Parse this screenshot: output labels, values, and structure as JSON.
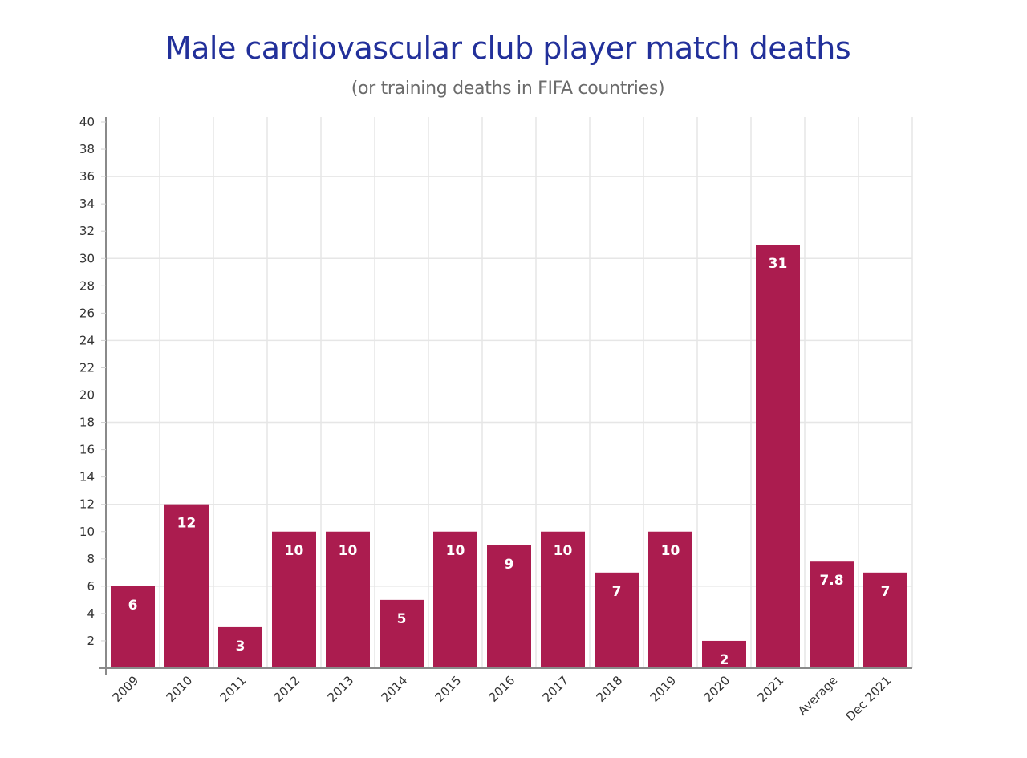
{
  "chart_data": {
    "type": "bar",
    "title": "Male cardiovascular club player match deaths",
    "subtitle": "(or training deaths in FIFA countries)",
    "xlabel": "",
    "ylabel": "",
    "categories": [
      "2009",
      "2010",
      "2011",
      "2012",
      "2013",
      "2014",
      "2015",
      "2016",
      "2017",
      "2018",
      "2019",
      "2020",
      "2021",
      "Average",
      "Dec 2021"
    ],
    "values": [
      6,
      12,
      3,
      10,
      10,
      5,
      10,
      9,
      10,
      7,
      10,
      2,
      31,
      7.8,
      7
    ],
    "data_labels": [
      "6",
      "12",
      "3",
      "10",
      "10",
      "5",
      "10",
      "9",
      "10",
      "7",
      "10",
      "2",
      "31",
      "7.8",
      "7"
    ],
    "ylim": [
      0,
      40
    ],
    "yticks": [
      2,
      4,
      6,
      8,
      10,
      12,
      14,
      16,
      18,
      20,
      22,
      24,
      26,
      28,
      30,
      32,
      34,
      36,
      38,
      40
    ],
    "grid_y_values": [
      6,
      12,
      18,
      24,
      30,
      36
    ],
    "grid": true,
    "legend": "none",
    "bar_color": "#ab1c4f",
    "title_color": "#22309a",
    "subtitle_color": "#6b6b6b"
  }
}
